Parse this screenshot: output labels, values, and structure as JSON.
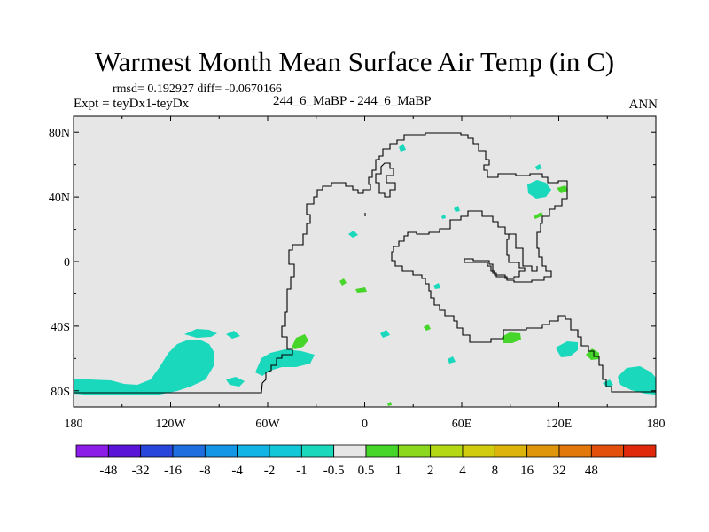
{
  "title": "Warmest Month Mean Surface Air Temp (in C)",
  "stats": "rmsd= 0.192927 diff= -0.0670166",
  "experiment": "Expt = teyDx1-teyDx",
  "case": "244_6_MaBP - 244_6_MaBP",
  "season": "ANN",
  "map": {
    "lon_range": [
      -180,
      180
    ],
    "lat_range": [
      -90,
      90
    ],
    "background_color": "#e6e6e6",
    "y_ticks": [
      {
        "lat": 80,
        "label": "80N"
      },
      {
        "lat": 40,
        "label": "40N"
      },
      {
        "lat": 0,
        "label": "0"
      },
      {
        "lat": -40,
        "label": "40S"
      },
      {
        "lat": -80,
        "label": "80S"
      }
    ],
    "x_ticks": [
      {
        "lon": -180,
        "label": "180"
      },
      {
        "lon": -120,
        "label": "120W"
      },
      {
        "lon": -60,
        "label": "60W"
      },
      {
        "lon": 0,
        "label": "0"
      },
      {
        "lon": 60,
        "label": "60E"
      },
      {
        "lon": 120,
        "label": "120E"
      },
      {
        "lon": 180,
        "label": "180"
      }
    ]
  },
  "colorbar": {
    "colors": [
      "#8c1ce8",
      "#5a14d8",
      "#2846dc",
      "#1e6ee0",
      "#1496e6",
      "#12b4e6",
      "#12c8d8",
      "#1ad8bc",
      "#e6e6e6",
      "#46d62a",
      "#8cd81e",
      "#b4d814",
      "#d2cc0e",
      "#dcb40c",
      "#e0960c",
      "#e2780c",
      "#e2500c",
      "#e0280a"
    ],
    "labels": [
      "-48",
      "-32",
      "-16",
      "-8",
      "-4",
      "-2",
      "-1",
      "-0.5",
      "0.5",
      "1",
      "2",
      "4",
      "8",
      "16",
      "32",
      "48"
    ]
  }
}
